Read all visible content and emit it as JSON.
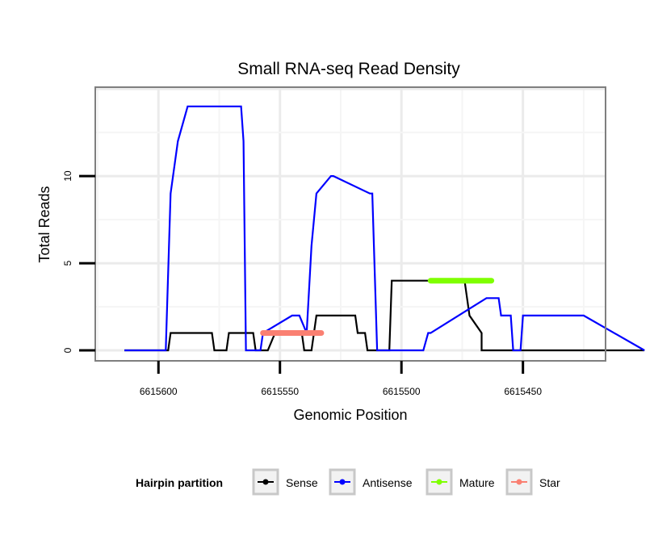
{
  "chart_data": {
    "type": "line",
    "title": "Small RNA-seq Read Density",
    "xlabel": "Genomic Position",
    "ylabel": "Total Reads",
    "xlim": [
      6615626,
      6615416
    ],
    "x_reversed": true,
    "ylim": [
      -0.6,
      15.1
    ],
    "x_ticks": [
      6615600,
      6615550,
      6615500,
      6615450
    ],
    "x_tick_labels": [
      "6615600",
      "6615550",
      "6615500",
      "6615450"
    ],
    "y_ticks": [
      0,
      5,
      10
    ],
    "y_tick_labels": [
      "0",
      "5",
      "10"
    ],
    "grid": true,
    "legend": {
      "title": "Hairpin partition",
      "position": "bottom",
      "entries": [
        {
          "name": "Sense",
          "color": "#000000"
        },
        {
          "name": "Antisense",
          "color": "#0000ff"
        },
        {
          "name": "Mature",
          "color": "#7fff00"
        },
        {
          "name": "Star",
          "color": "#fa8072"
        }
      ]
    },
    "series": [
      {
        "name": "Sense",
        "color": "#000000",
        "x": [
          6615614,
          6615596,
          6615595,
          6615591,
          6615583,
          6615582,
          6615578,
          6615577,
          6615572,
          6615571,
          6615561,
          6615560,
          6615555,
          6615552,
          6615548,
          6615541,
          6615540,
          6615537,
          6615535,
          6615519,
          6615518,
          6615515,
          6615514,
          6615505,
          6615504,
          6615474,
          6615472,
          6615467,
          6615467,
          6615443,
          6615400
        ],
        "y": [
          0,
          0,
          1,
          1,
          1,
          1,
          1,
          0,
          0,
          1,
          1,
          0,
          0,
          1,
          1,
          1,
          0,
          0,
          2,
          2,
          1,
          1,
          0,
          0,
          4,
          4,
          2,
          1,
          0,
          0,
          0
        ]
      },
      {
        "name": "Antisense",
        "color": "#0000ff",
        "x": [
          6615614,
          6615597,
          6615595,
          6615594,
          6615592,
          6615588,
          6615587,
          6615566,
          6615565,
          6615564,
          6615558,
          6615557,
          6615545,
          6615542,
          6615539,
          6615537,
          6615535,
          6615529,
          6615528,
          6615513,
          6615512,
          6615510,
          6615509,
          6615500,
          6615491,
          6615489,
          6615488,
          6615465,
          6615464,
          6615460,
          6615459,
          6615455,
          6615454,
          6615451,
          6615450,
          6615425,
          6615400
        ],
        "y": [
          0,
          0,
          9,
          10,
          12,
          14,
          14,
          14,
          12,
          0,
          0,
          1,
          2,
          2,
          1,
          6,
          9,
          10,
          10,
          9,
          9,
          0,
          0,
          0,
          0,
          1,
          1,
          3,
          3,
          3,
          2,
          2,
          0,
          0,
          2,
          2,
          0
        ]
      },
      {
        "name": "Mature",
        "color": "#7fff00",
        "x": [
          6615488,
          6615463
        ],
        "y": [
          4,
          4
        ]
      },
      {
        "name": "Star",
        "color": "#fa8072",
        "x": [
          6615557,
          6615533
        ],
        "y": [
          1,
          1
        ]
      }
    ]
  }
}
